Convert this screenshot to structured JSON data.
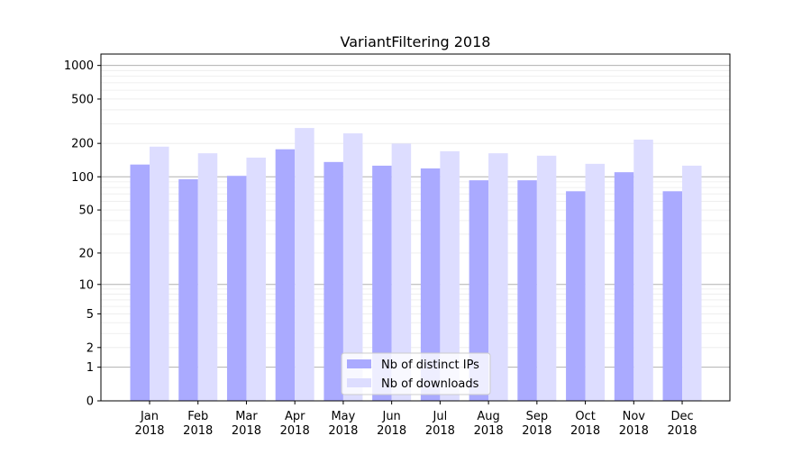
{
  "chart_data": {
    "type": "bar",
    "title": "VariantFiltering 2018",
    "xlabel": "",
    "ylabel": "",
    "yscale": "log(1+y)",
    "ylim": [
      0,
      1250
    ],
    "yticks": [
      0,
      1,
      2,
      5,
      10,
      20,
      50,
      100,
      200,
      500,
      1000
    ],
    "grid": true,
    "legend_position": "bottom-center",
    "categories": [
      [
        "Jan",
        "2018"
      ],
      [
        "Feb",
        "2018"
      ],
      [
        "Mar",
        "2018"
      ],
      [
        "Apr",
        "2018"
      ],
      [
        "May",
        "2018"
      ],
      [
        "Jun",
        "2018"
      ],
      [
        "Jul",
        "2018"
      ],
      [
        "Aug",
        "2018"
      ],
      [
        "Sep",
        "2018"
      ],
      [
        "Oct",
        "2018"
      ],
      [
        "Nov",
        "2018"
      ],
      [
        "Dec",
        "2018"
      ]
    ],
    "series": [
      {
        "name": "Nb of distinct IPs",
        "color": "#aaaaff",
        "values": [
          129,
          95,
          102,
          177,
          136,
          126,
          119,
          93,
          93,
          74,
          110,
          74
        ]
      },
      {
        "name": "Nb of downloads",
        "color": "#ddddff",
        "values": [
          187,
          163,
          149,
          275,
          246,
          199,
          170,
          163,
          155,
          131,
          216,
          126
        ]
      }
    ]
  }
}
